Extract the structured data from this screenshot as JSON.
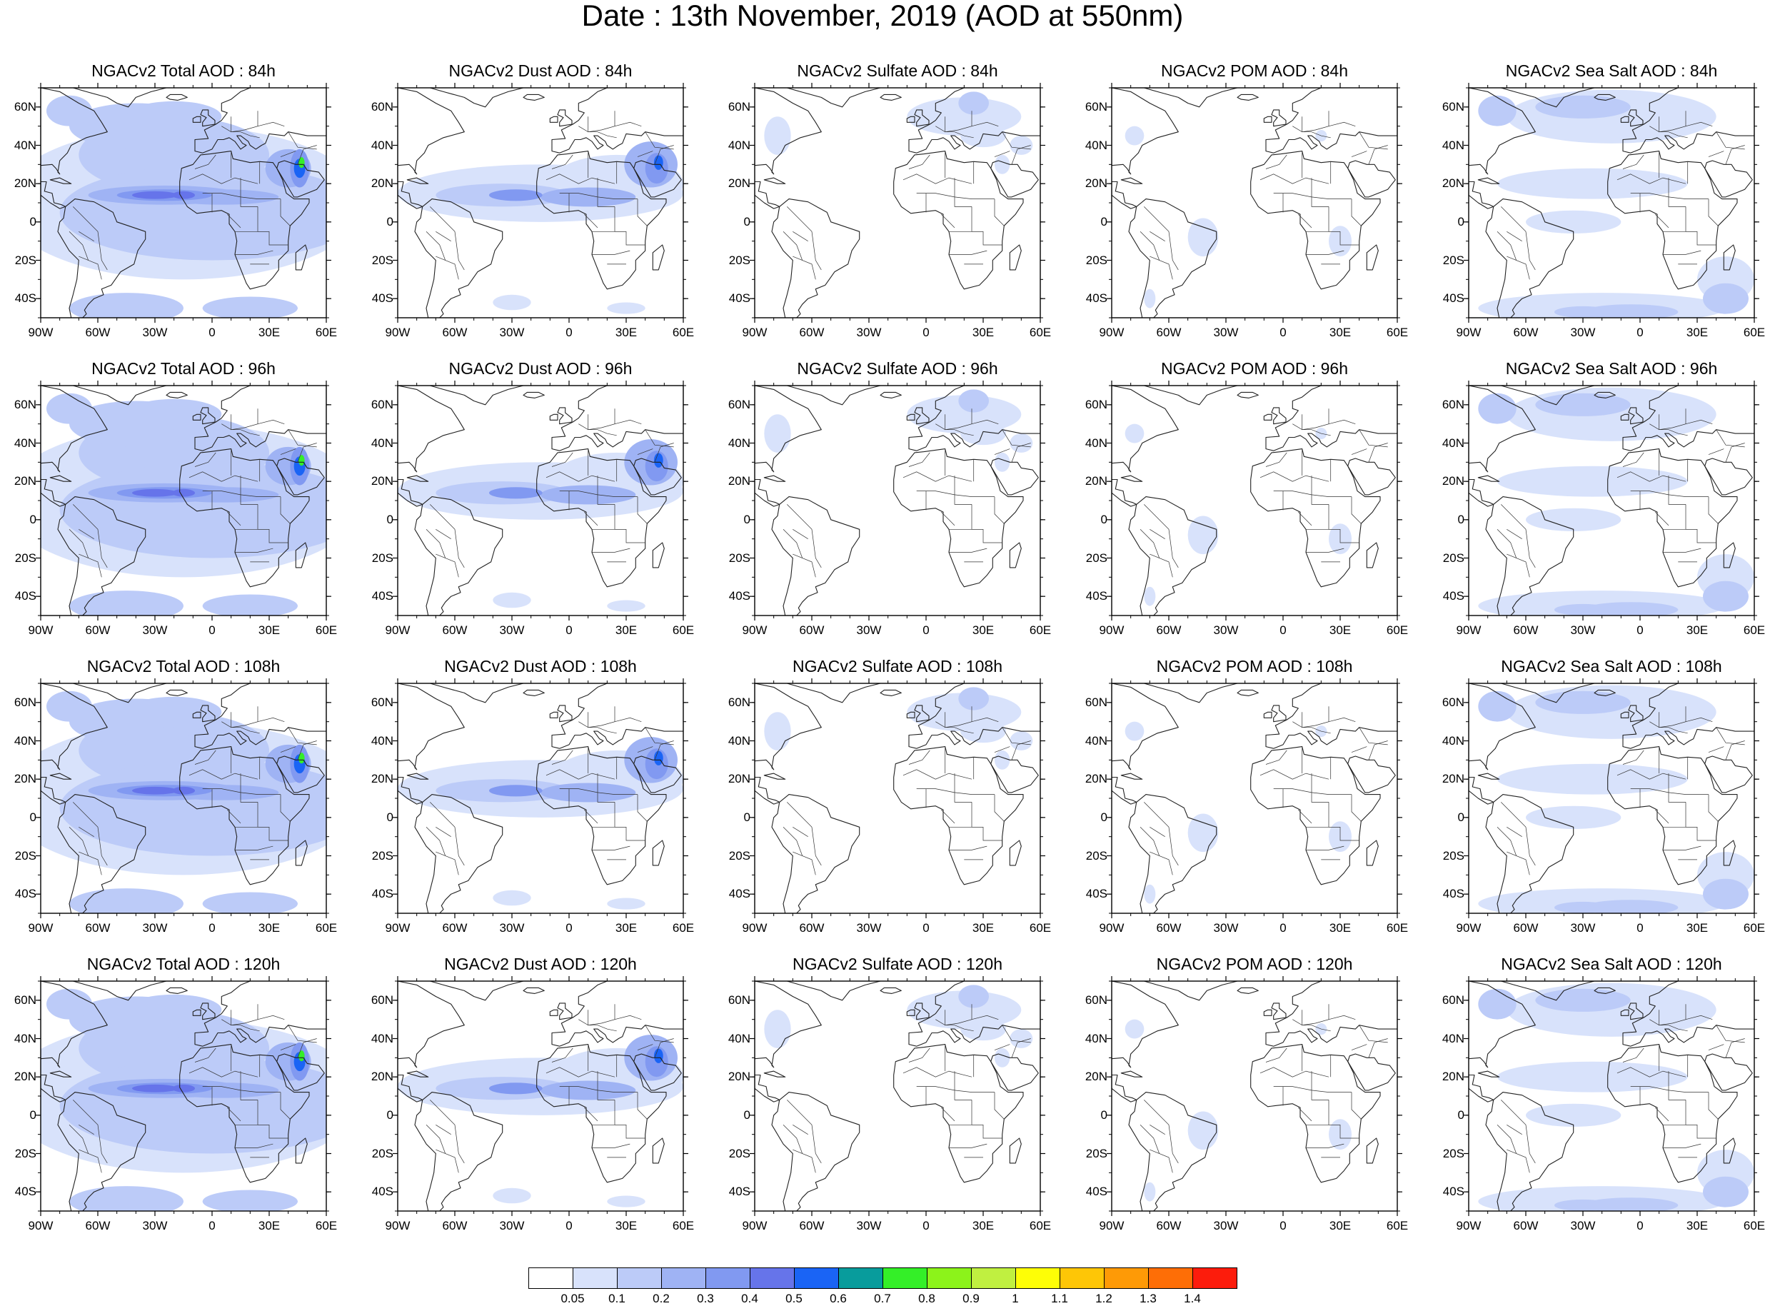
{
  "title": "Date : 13th November, 2019 (AOD at 550nm)",
  "lat_labels": [
    "60N",
    "40N",
    "20N",
    "0",
    "20S",
    "40S"
  ],
  "lat_values": [
    60,
    40,
    20,
    0,
    -20,
    -40
  ],
  "lon_labels": [
    "90W",
    "60W",
    "30W",
    "0",
    "30E",
    "60E"
  ],
  "lon_values": [
    -90,
    -60,
    -30,
    0,
    30,
    60
  ],
  "extent": {
    "lon": [
      -90,
      60
    ],
    "lat": [
      -50,
      70
    ]
  },
  "colorbar": {
    "labels": [
      "0.05",
      "0.1",
      "0.2",
      "0.3",
      "0.4",
      "0.5",
      "0.6",
      "0.7",
      "0.8",
      "0.9",
      "1",
      "1.1",
      "1.2",
      "1.3",
      "1.4"
    ],
    "colors": [
      "#ffffff",
      "#d8e2fb",
      "#bccbf8",
      "#9fb3f4",
      "#8199f1",
      "#6674ea",
      "#1a64f5",
      "#089c9c",
      "#34ef28",
      "#8cf31a",
      "#c0f040",
      "#fefe06",
      "#fec606",
      "#fe9a06",
      "#fe6e06",
      "#fc1c0c"
    ]
  },
  "panels": [
    {
      "row": 0,
      "col": 0,
      "title": "NGACv2 Total AOD : 84h",
      "type": "total"
    },
    {
      "row": 0,
      "col": 1,
      "title": "NGACv2 Dust AOD : 84h",
      "type": "dust"
    },
    {
      "row": 0,
      "col": 2,
      "title": "NGACv2 Sulfate AOD : 84h",
      "type": "sulfate"
    },
    {
      "row": 0,
      "col": 3,
      "title": "NGACv2 POM AOD : 84h",
      "type": "pom"
    },
    {
      "row": 0,
      "col": 4,
      "title": "NGACv2 Sea Salt AOD : 84h",
      "type": "seasalt"
    },
    {
      "row": 1,
      "col": 0,
      "title": "NGACv2 Total AOD : 96h",
      "type": "total"
    },
    {
      "row": 1,
      "col": 1,
      "title": "NGACv2 Dust AOD : 96h",
      "type": "dust"
    },
    {
      "row": 1,
      "col": 2,
      "title": "NGACv2 Sulfate AOD : 96h",
      "type": "sulfate"
    },
    {
      "row": 1,
      "col": 3,
      "title": "NGACv2 POM AOD : 96h",
      "type": "pom"
    },
    {
      "row": 1,
      "col": 4,
      "title": "NGACv2 Sea Salt AOD : 96h",
      "type": "seasalt"
    },
    {
      "row": 2,
      "col": 0,
      "title": "NGACv2 Total AOD : 108h",
      "type": "total"
    },
    {
      "row": 2,
      "col": 1,
      "title": "NGACv2 Dust AOD : 108h",
      "type": "dust"
    },
    {
      "row": 2,
      "col": 2,
      "title": "NGACv2 Sulfate AOD : 108h",
      "type": "sulfate"
    },
    {
      "row": 2,
      "col": 3,
      "title": "NGACv2 POM AOD : 108h",
      "type": "pom"
    },
    {
      "row": 2,
      "col": 4,
      "title": "NGACv2 Sea Salt AOD : 108h",
      "type": "seasalt"
    },
    {
      "row": 3,
      "col": 0,
      "title": "NGACv2 Total AOD : 120h",
      "type": "total"
    },
    {
      "row": 3,
      "col": 1,
      "title": "NGACv2 Dust AOD : 120h",
      "type": "dust"
    },
    {
      "row": 3,
      "col": 2,
      "title": "NGACv2 Sulfate AOD : 120h",
      "type": "sulfate"
    },
    {
      "row": 3,
      "col": 3,
      "title": "NGACv2 POM AOD : 120h",
      "type": "pom"
    },
    {
      "row": 3,
      "col": 4,
      "title": "NGACv2 Sea Salt  AOD : 120h",
      "type": "seasalt"
    }
  ]
}
